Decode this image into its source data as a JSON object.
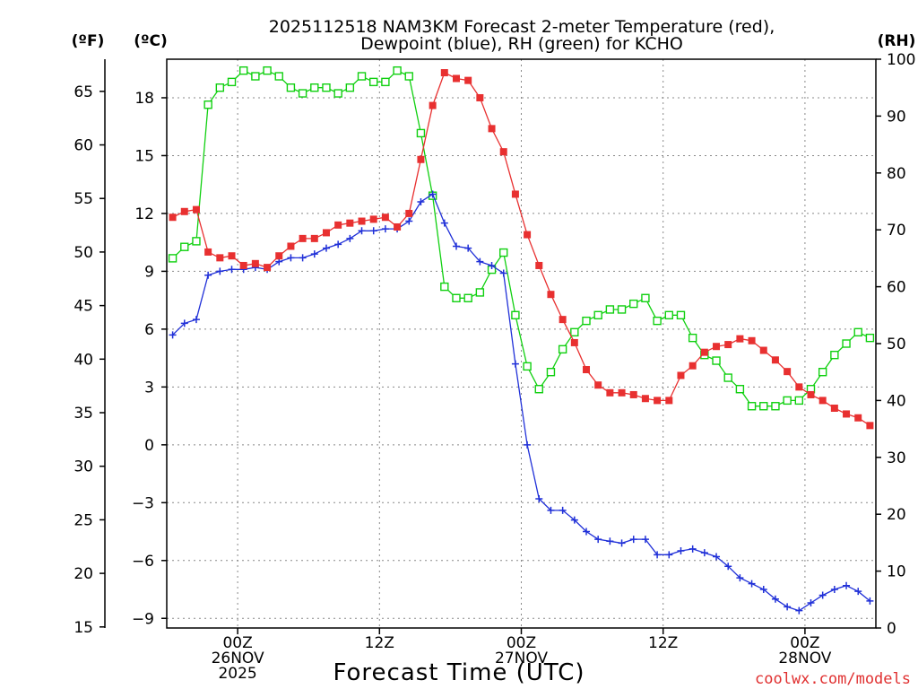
{
  "chart_data": {
    "type": "line",
    "title_line1": "2025112518 NAM3KM Forecast 2-meter Temperature (red),",
    "title_line2": "Dewpoint (blue), RH (green) for KCHO",
    "xlabel": "Forecast Time (UTC)",
    "credit": "coolwx.com/models",
    "units": {
      "fahrenheit": "(ºF)",
      "celsius": "(ºC)",
      "rh": "(RH)"
    },
    "x_range_hours": [
      0,
      60
    ],
    "x_ticks": [
      {
        "hour": 6,
        "lines": [
          "00Z",
          "26NOV",
          "2025"
        ]
      },
      {
        "hour": 18,
        "lines": [
          "12Z"
        ]
      },
      {
        "hour": 30,
        "lines": [
          "00Z",
          "27NOV"
        ]
      },
      {
        "hour": 42,
        "lines": [
          "12Z"
        ]
      },
      {
        "hour": 54,
        "lines": [
          "00Z",
          "28NOV"
        ]
      }
    ],
    "celsius_axis": {
      "range": [
        -9.5,
        20.0
      ],
      "ticks": [
        18,
        15,
        12,
        9,
        6,
        3,
        0,
        -3,
        -6,
        -9
      ],
      "tick_labels": [
        "18",
        "15",
        "12",
        "9",
        "6",
        "3",
        "0",
        "−3",
        "−6",
        "−9"
      ]
    },
    "fahrenheit_axis": {
      "ticks": [
        65,
        60,
        55,
        50,
        45,
        40,
        35,
        30,
        25,
        20,
        15
      ],
      "tick_labels": [
        "65",
        "60",
        "55",
        "50",
        "45",
        "40",
        "35",
        "30",
        "25",
        "20",
        "15"
      ]
    },
    "rh_axis": {
      "range": [
        0,
        100
      ],
      "ticks": [
        100,
        90,
        80,
        70,
        60,
        50,
        40,
        30,
        20,
        10,
        0
      ],
      "tick_labels": [
        "100",
        "90",
        "80",
        "70",
        "60",
        "50",
        "40",
        "30",
        "20",
        "10",
        "0"
      ]
    },
    "colors": {
      "temperature": "#e83030",
      "dewpoint": "#2030d8",
      "rh": "#10d010",
      "grid": "#888888",
      "credit": "#e03030"
    },
    "series": [
      {
        "name": "Temperature",
        "unit": "C",
        "marker": "filled-square",
        "values": [
          11.8,
          12.1,
          12.2,
          10.0,
          9.7,
          9.8,
          9.3,
          9.4,
          9.2,
          9.8,
          10.3,
          10.7,
          10.7,
          11.0,
          11.4,
          11.5,
          11.6,
          11.7,
          11.8,
          11.3,
          12.0,
          14.8,
          17.6,
          19.3,
          19.0,
          18.9,
          18.0,
          16.4,
          15.2,
          13.0,
          10.9,
          9.3,
          7.8,
          6.5,
          5.3,
          3.9,
          3.1,
          2.7,
          2.7,
          2.6,
          2.4,
          2.3,
          2.3,
          3.6,
          4.1,
          4.8,
          5.1,
          5.2,
          5.5,
          5.4,
          4.9,
          4.4,
          3.8,
          3.0,
          2.6,
          2.3,
          1.9,
          1.6,
          1.4,
          1.0
        ]
      },
      {
        "name": "Dewpoint",
        "unit": "C",
        "marker": "plus",
        "values": [
          5.7,
          6.3,
          6.5,
          8.8,
          9.0,
          9.1,
          9.1,
          9.2,
          9.1,
          9.5,
          9.7,
          9.7,
          9.9,
          10.2,
          10.4,
          10.7,
          11.1,
          11.1,
          11.2,
          11.2,
          11.6,
          12.6,
          13.0,
          11.5,
          10.3,
          10.2,
          9.5,
          9.3,
          8.9,
          4.2,
          -0.0,
          -2.8,
          -3.4,
          -3.4,
          -3.9,
          -4.5,
          -4.9,
          -5.0,
          -5.1,
          -4.9,
          -4.9,
          -5.7,
          -5.7,
          -5.5,
          -5.4,
          -5.6,
          -5.8,
          -6.3,
          -6.9,
          -7.2,
          -7.5,
          -8.0,
          -8.4,
          -8.6,
          -8.2,
          -7.8,
          -7.5,
          -7.3,
          -7.6,
          -8.1
        ]
      },
      {
        "name": "RH",
        "unit": "%",
        "marker": "open-square",
        "values": [
          65.0,
          67.0,
          68.0,
          92.0,
          95.0,
          96.0,
          98.0,
          97.0,
          98.0,
          97.0,
          95.0,
          94.0,
          95.0,
          95.0,
          94.0,
          95.0,
          97.0,
          96.0,
          96.0,
          98.0,
          97.0,
          87.0,
          76.0,
          60.0,
          58.0,
          58.0,
          59.0,
          63.0,
          66.0,
          55.0,
          46.0,
          42.0,
          45.0,
          49.0,
          52.0,
          54.0,
          55.0,
          56.0,
          56.0,
          57.0,
          58.0,
          54.0,
          55.0,
          55.0,
          51.0,
          48.0,
          47.0,
          44.0,
          42.0,
          39.0,
          39.0,
          39.0,
          40.0,
          40.0,
          42.0,
          45.0,
          48.0,
          50.0,
          52.0,
          51.0
        ]
      }
    ]
  }
}
